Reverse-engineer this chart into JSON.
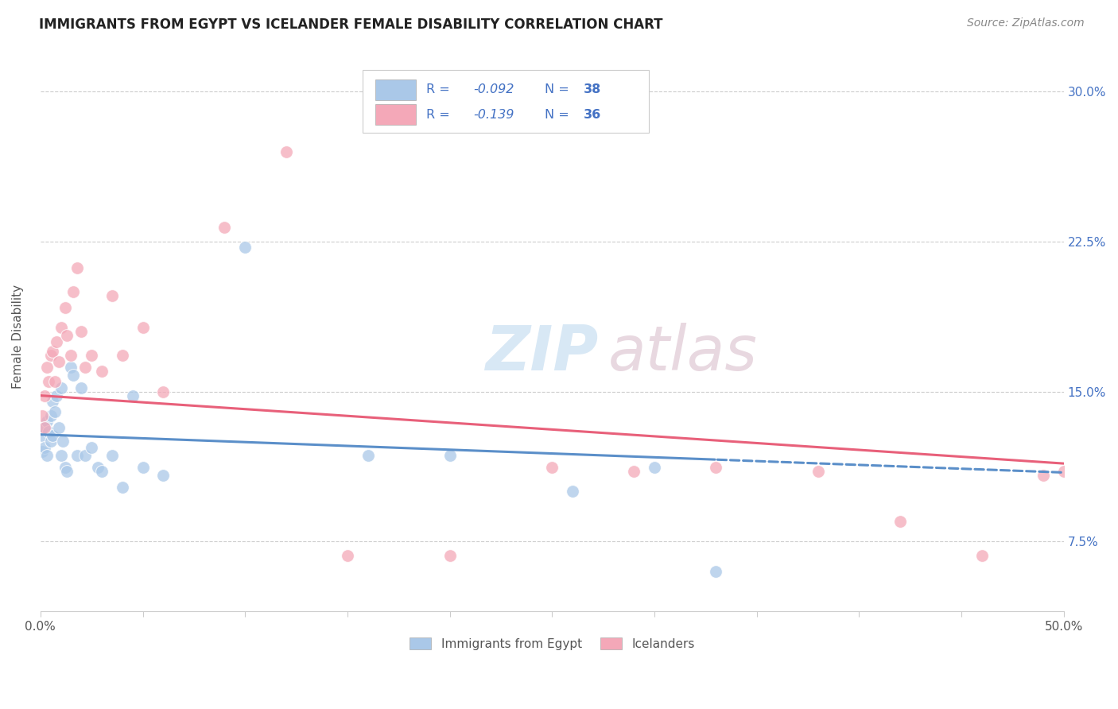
{
  "title": "IMMIGRANTS FROM EGYPT VS ICELANDER FEMALE DISABILITY CORRELATION CHART",
  "source": "Source: ZipAtlas.com",
  "ylabel": "Female Disability",
  "xlim": [
    0.0,
    0.5
  ],
  "ylim": [
    0.04,
    0.315
  ],
  "ytick_vals": [
    0.075,
    0.15,
    0.225,
    0.3
  ],
  "ytick_labels": [
    "7.5%",
    "15.0%",
    "22.5%",
    "30.0%"
  ],
  "blue_color": "#aac8e8",
  "pink_color": "#f4a8b8",
  "trend_blue": "#5b8fc9",
  "trend_pink": "#e8607a",
  "background": "#ffffff",
  "legend_text_color": "#4472c4",
  "legend_r1": "R = ",
  "legend_rv1": "-0.092",
  "legend_n1": "N = ",
  "legend_nv1": "38",
  "legend_r2": "R = ",
  "legend_rv2": "-0.139",
  "legend_n2": "N = ",
  "legend_nv2": "36",
  "egypt_x": [
    0.001,
    0.001,
    0.002,
    0.002,
    0.003,
    0.003,
    0.004,
    0.005,
    0.005,
    0.006,
    0.006,
    0.007,
    0.008,
    0.009,
    0.01,
    0.01,
    0.011,
    0.012,
    0.013,
    0.015,
    0.016,
    0.018,
    0.02,
    0.022,
    0.025,
    0.028,
    0.03,
    0.035,
    0.04,
    0.045,
    0.05,
    0.06,
    0.1,
    0.16,
    0.2,
    0.26,
    0.3,
    0.33
  ],
  "egypt_y": [
    0.128,
    0.12,
    0.132,
    0.122,
    0.135,
    0.118,
    0.13,
    0.138,
    0.125,
    0.145,
    0.128,
    0.14,
    0.148,
    0.132,
    0.152,
    0.118,
    0.125,
    0.112,
    0.11,
    0.162,
    0.158,
    0.118,
    0.152,
    0.118,
    0.122,
    0.112,
    0.11,
    0.118,
    0.102,
    0.148,
    0.112,
    0.108,
    0.222,
    0.118,
    0.118,
    0.1,
    0.112,
    0.06
  ],
  "iceland_x": [
    0.001,
    0.002,
    0.002,
    0.003,
    0.004,
    0.005,
    0.006,
    0.007,
    0.008,
    0.009,
    0.01,
    0.012,
    0.013,
    0.015,
    0.016,
    0.018,
    0.02,
    0.022,
    0.025,
    0.03,
    0.035,
    0.04,
    0.05,
    0.06,
    0.09,
    0.12,
    0.15,
    0.2,
    0.25,
    0.29,
    0.33,
    0.38,
    0.42,
    0.46,
    0.49,
    0.5
  ],
  "iceland_y": [
    0.138,
    0.148,
    0.132,
    0.162,
    0.155,
    0.168,
    0.17,
    0.155,
    0.175,
    0.165,
    0.182,
    0.192,
    0.178,
    0.168,
    0.2,
    0.212,
    0.18,
    0.162,
    0.168,
    0.16,
    0.198,
    0.168,
    0.182,
    0.15,
    0.232,
    0.27,
    0.068,
    0.068,
    0.112,
    0.11,
    0.112,
    0.11,
    0.085,
    0.068,
    0.108,
    0.11
  ]
}
